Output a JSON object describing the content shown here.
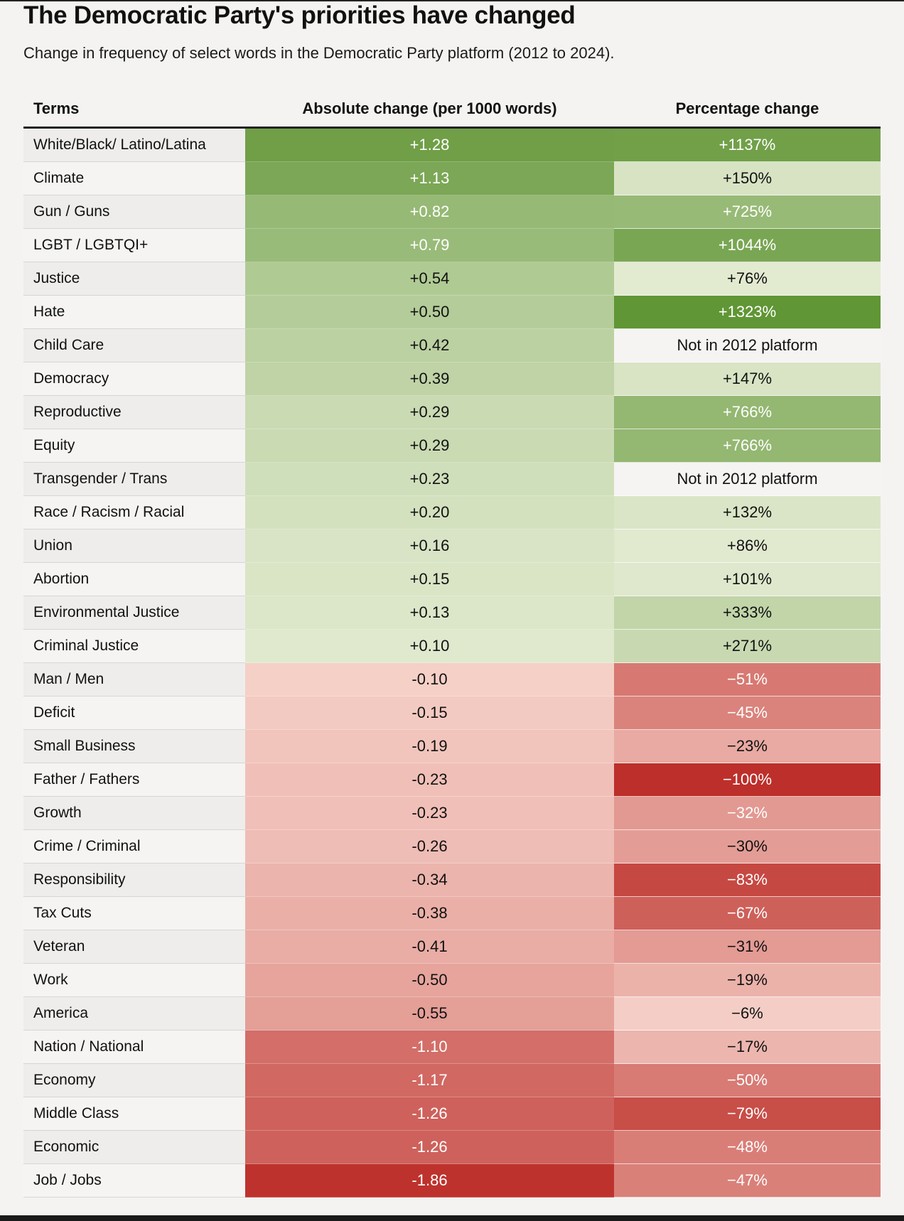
{
  "header": {
    "title": "The Democratic Party's priorities have changed",
    "subtitle": "Change in frequency of select words in the Democratic Party platform (2012 to 2024)."
  },
  "chart_data": {
    "type": "table",
    "title": "The Democratic Party's priorities have changed",
    "subtitle": "Change in frequency of select words in the Democratic Party platform (2012 to 2024).",
    "columns": [
      "Terms",
      "Absolute change (per 1000 words)",
      "Percentage change"
    ],
    "rows": [
      {
        "term": "White/Black/ Latino/Latina",
        "abs": "+1.28",
        "abs_value": 1.28,
        "pct": "+1137%",
        "pct_value": 1137
      },
      {
        "term": "Climate",
        "abs": "+1.13",
        "abs_value": 1.13,
        "pct": "+150%",
        "pct_value": 150
      },
      {
        "term": "Gun / Guns",
        "abs": "+0.82",
        "abs_value": 0.82,
        "pct": "+725%",
        "pct_value": 725
      },
      {
        "term": "LGBT / LGBTQI+",
        "abs": "+0.79",
        "abs_value": 0.79,
        "pct": "+1044%",
        "pct_value": 1044
      },
      {
        "term": "Justice",
        "abs": "+0.54",
        "abs_value": 0.54,
        "pct": "+76%",
        "pct_value": 76
      },
      {
        "term": "Hate",
        "abs": "+0.50",
        "abs_value": 0.5,
        "pct": "+1323%",
        "pct_value": 1323
      },
      {
        "term": "Child Care",
        "abs": "+0.42",
        "abs_value": 0.42,
        "pct": "Not in 2012 platform",
        "pct_value": null
      },
      {
        "term": "Democracy",
        "abs": "+0.39",
        "abs_value": 0.39,
        "pct": "+147%",
        "pct_value": 147
      },
      {
        "term": "Reproductive",
        "abs": "+0.29",
        "abs_value": 0.29,
        "pct": "+766%",
        "pct_value": 766
      },
      {
        "term": "Equity",
        "abs": "+0.29",
        "abs_value": 0.29,
        "pct": "+766%",
        "pct_value": 766
      },
      {
        "term": "Transgender / Trans",
        "abs": "+0.23",
        "abs_value": 0.23,
        "pct": "Not in 2012 platform",
        "pct_value": null
      },
      {
        "term": "Race / Racism / Racial",
        "abs": "+0.20",
        "abs_value": 0.2,
        "pct": "+132%",
        "pct_value": 132
      },
      {
        "term": "Union",
        "abs": "+0.16",
        "abs_value": 0.16,
        "pct": "+86%",
        "pct_value": 86
      },
      {
        "term": "Abortion",
        "abs": "+0.15",
        "abs_value": 0.15,
        "pct": "+101%",
        "pct_value": 101
      },
      {
        "term": "Environmental Justice",
        "abs": "+0.13",
        "abs_value": 0.13,
        "pct": "+333%",
        "pct_value": 333
      },
      {
        "term": "Criminal Justice",
        "abs": "+0.10",
        "abs_value": 0.1,
        "pct": "+271%",
        "pct_value": 271
      },
      {
        "term": "Man / Men",
        "abs": "-0.10",
        "abs_value": -0.1,
        "pct": "−51%",
        "pct_value": -51
      },
      {
        "term": "Deficit",
        "abs": "-0.15",
        "abs_value": -0.15,
        "pct": "−45%",
        "pct_value": -45
      },
      {
        "term": "Small Business",
        "abs": "-0.19",
        "abs_value": -0.19,
        "pct": "−23%",
        "pct_value": -23
      },
      {
        "term": "Father / Fathers",
        "abs": "-0.23",
        "abs_value": -0.23,
        "pct": "−100%",
        "pct_value": -100
      },
      {
        "term": "Growth",
        "abs": "-0.23",
        "abs_value": -0.23,
        "pct": "−32%",
        "pct_value": -32
      },
      {
        "term": "Crime / Criminal",
        "abs": "-0.26",
        "abs_value": -0.26,
        "pct": "−30%",
        "pct_value": -30
      },
      {
        "term": "Responsibility",
        "abs": "-0.34",
        "abs_value": -0.34,
        "pct": "−83%",
        "pct_value": -83
      },
      {
        "term": "Tax Cuts",
        "abs": "-0.38",
        "abs_value": -0.38,
        "pct": "−67%",
        "pct_value": -67
      },
      {
        "term": "Veteran",
        "abs": "-0.41",
        "abs_value": -0.41,
        "pct": "−31%",
        "pct_value": -31
      },
      {
        "term": "Work",
        "abs": "-0.50",
        "abs_value": -0.5,
        "pct": "−19%",
        "pct_value": -19
      },
      {
        "term": "America",
        "abs": "-0.55",
        "abs_value": -0.55,
        "pct": "−6%",
        "pct_value": -6
      },
      {
        "term": "Nation / National",
        "abs": "-1.10",
        "abs_value": -1.1,
        "pct": "−17%",
        "pct_value": -17
      },
      {
        "term": "Economy",
        "abs": "-1.17",
        "abs_value": -1.17,
        "pct": "−50%",
        "pct_value": -50
      },
      {
        "term": "Middle Class",
        "abs": "-1.26",
        "abs_value": -1.26,
        "pct": "−79%",
        "pct_value": -79
      },
      {
        "term": "Economic",
        "abs": "-1.26",
        "abs_value": -1.26,
        "pct": "−48%",
        "pct_value": -48
      },
      {
        "term": "Job / Jobs",
        "abs": "-1.86",
        "abs_value": -1.86,
        "pct": "−47%",
        "pct_value": -47
      }
    ]
  },
  "colors": {
    "background": "#f4f3f1",
    "term_row_odd": "#eeedec",
    "term_row_even": "#f5f4f2",
    "neutral_cell": "#f5f4f2",
    "positive_light": "#f1f4e2",
    "positive_dark": "#5e9432",
    "negative_light": "#fbe1d8",
    "negative_dark": "#bd2f2a"
  }
}
